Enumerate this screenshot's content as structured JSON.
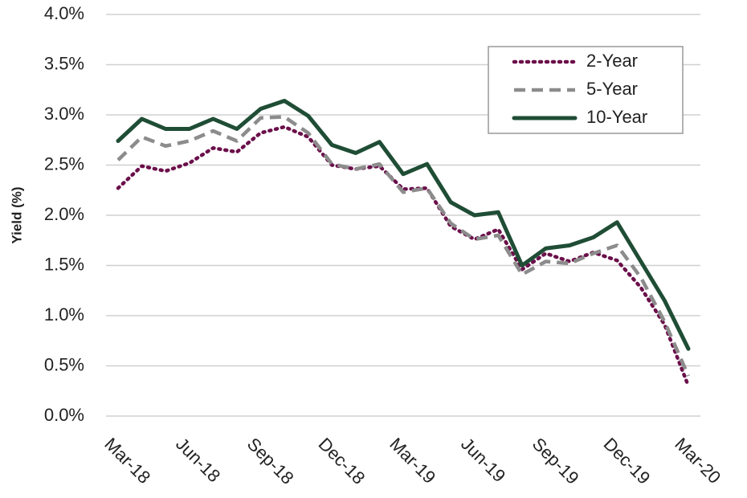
{
  "chart_data": {
    "type": "line",
    "ylabel": "Yield (%)",
    "categories": [
      "Mar-18",
      null,
      null,
      "Jun-18",
      null,
      null,
      "Sep-18",
      null,
      null,
      "Dec-18",
      null,
      null,
      "Mar-19",
      null,
      null,
      "Jun-19",
      null,
      null,
      "Sep-19",
      null,
      null,
      "Dec-19",
      null,
      null,
      "Mar-20"
    ],
    "series": [
      {
        "name": "2-Year",
        "color": "#6b0f4a",
        "style": "dotted",
        "values": [
          2.27,
          2.49,
          2.44,
          2.52,
          2.67,
          2.63,
          2.82,
          2.88,
          2.78,
          2.5,
          2.46,
          2.49,
          2.26,
          2.27,
          1.89,
          1.76,
          1.86,
          1.46,
          1.62,
          1.54,
          1.63,
          1.55,
          1.28,
          0.91,
          0.3
        ]
      },
      {
        "name": "5-Year",
        "color": "#8c8c8c",
        "style": "dashed",
        "values": [
          2.55,
          2.78,
          2.69,
          2.74,
          2.84,
          2.74,
          2.97,
          2.98,
          2.82,
          2.51,
          2.46,
          2.51,
          2.23,
          2.27,
          1.92,
          1.76,
          1.8,
          1.41,
          1.54,
          1.52,
          1.62,
          1.7,
          1.38,
          0.94,
          0.4
        ]
      },
      {
        "name": "10-Year",
        "color": "#1f4d35",
        "style": "solid",
        "values": [
          2.74,
          2.96,
          2.86,
          2.86,
          2.96,
          2.86,
          3.06,
          3.14,
          2.99,
          2.7,
          2.62,
          2.73,
          2.41,
          2.51,
          2.13,
          2.0,
          2.03,
          1.5,
          1.67,
          1.7,
          1.78,
          1.93,
          1.54,
          1.15,
          0.67
        ]
      }
    ],
    "ylim": [
      0,
      4
    ],
    "yticks": [
      {
        "value": 0,
        "label": "0.0%"
      },
      {
        "value": 0.5,
        "label": "0.5%"
      },
      {
        "value": 1,
        "label": "1.0%"
      },
      {
        "value": 1.5,
        "label": "1.5%"
      },
      {
        "value": 2,
        "label": "2.0%"
      },
      {
        "value": 2.5,
        "label": "2.5%"
      },
      {
        "value": 3,
        "label": "3.0%"
      },
      {
        "value": 3.5,
        "label": "3.5%"
      },
      {
        "value": 4,
        "label": "4.0%"
      }
    ],
    "grid": true,
    "legend": "upper right"
  }
}
